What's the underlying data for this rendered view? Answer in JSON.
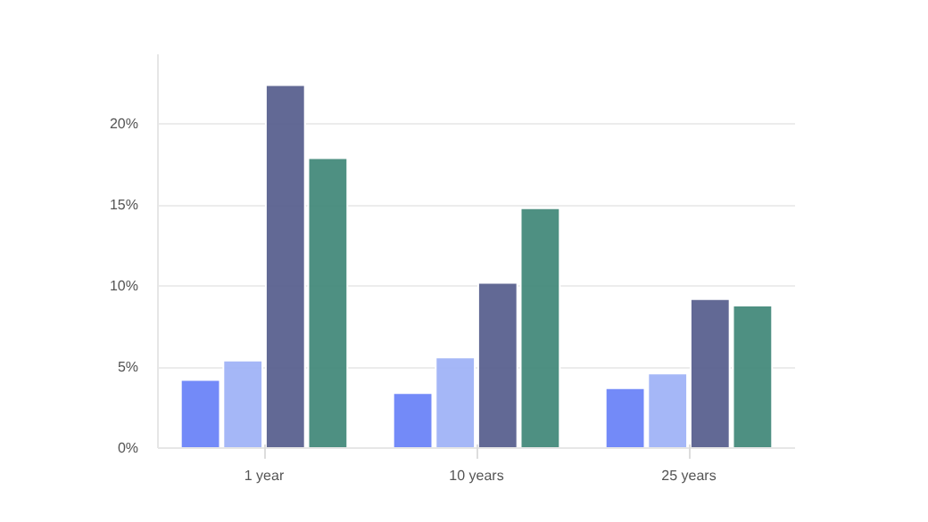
{
  "chart_data": {
    "type": "bar",
    "categories": [
      "1 year",
      "10 years",
      "25 years"
    ],
    "series": [
      {
        "color": "#6b84f8",
        "values": [
          4.2,
          3.4,
          3.7
        ]
      },
      {
        "color": "#a0b3f7",
        "values": [
          5.4,
          5.6,
          4.6
        ]
      },
      {
        "color": "#5a618f",
        "values": [
          22.4,
          10.2,
          9.2
        ]
      },
      {
        "color": "#448a7b",
        "values": [
          17.9,
          14.8,
          8.8
        ]
      }
    ],
    "ylim": [
      0,
      24.3
    ],
    "yticks": [
      {
        "value": 0,
        "label": "0%"
      },
      {
        "value": 5,
        "label": "5%"
      },
      {
        "value": 10,
        "label": "10%"
      },
      {
        "value": 15,
        "label": "15%"
      },
      {
        "value": 20,
        "label": "20%"
      }
    ],
    "grid": "y"
  }
}
